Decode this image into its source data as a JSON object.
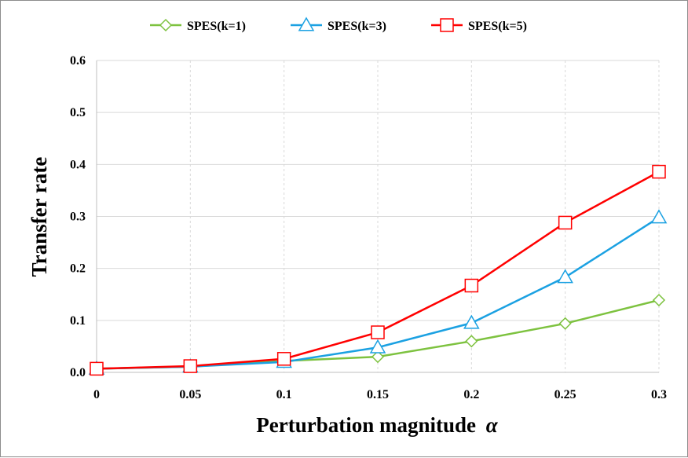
{
  "chart_data": {
    "type": "line",
    "title": "",
    "xlabel": "Perturbation magnitude",
    "xlabel_symbol": "α",
    "ylabel": "Transfer rate",
    "x": [
      0,
      0.05,
      0.1,
      0.15,
      0.2,
      0.25,
      0.3
    ],
    "x_tick_labels": [
      "0",
      "0.05",
      "0.1",
      "0.15",
      "0.2",
      "0.25",
      "0.3"
    ],
    "y_tick_labels": [
      "0.0",
      "0.1",
      "0.2",
      "0.3",
      "0.4",
      "0.5",
      "0.6"
    ],
    "ylim": [
      0,
      0.6
    ],
    "xlim": [
      0,
      0.3
    ],
    "grid": true,
    "legend_position": "top",
    "series": [
      {
        "name": "SPES(k=1)",
        "color": "#7dc23f",
        "marker": "diamond",
        "values": [
          0.007,
          0.011,
          0.022,
          0.03,
          0.06,
          0.094,
          0.139
        ]
      },
      {
        "name": "SPES(k=3)",
        "color": "#1ba1e2",
        "marker": "triangle",
        "values": [
          0.007,
          0.011,
          0.02,
          0.048,
          0.095,
          0.183,
          0.298
        ]
      },
      {
        "name": "SPES(k=5)",
        "color": "#ff0000",
        "marker": "square",
        "values": [
          0.007,
          0.012,
          0.026,
          0.077,
          0.167,
          0.288,
          0.386
        ]
      }
    ]
  }
}
